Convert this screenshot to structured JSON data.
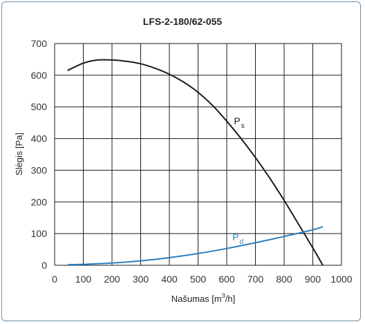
{
  "chart_data": {
    "type": "line",
    "title": "LFS-2-180/62-055",
    "xlabel_main": "Našumas [m",
    "xlabel_sup": "3",
    "xlabel_end": "/h]",
    "ylabel": "Slėgis [Pa]",
    "xlim": [
      0,
      1000
    ],
    "ylim": [
      0,
      700
    ],
    "xticks": [
      0,
      100,
      200,
      300,
      400,
      500,
      600,
      700,
      800,
      900,
      1000
    ],
    "yticks": [
      0,
      100,
      200,
      300,
      400,
      500,
      600,
      700
    ],
    "grid": true,
    "series": [
      {
        "name_main": "P",
        "name_sub": "s",
        "color": "#1a1a1a",
        "x": [
          45,
          100,
          150,
          200,
          250,
          300,
          350,
          400,
          450,
          500,
          550,
          600,
          650,
          700,
          750,
          800,
          850,
          900,
          935
        ],
        "y": [
          615,
          638,
          648,
          648,
          644,
          636,
          622,
          603,
          578,
          546,
          505,
          455,
          400,
          340,
          275,
          205,
          130,
          55,
          0
        ],
        "label_at": [
          625,
          445
        ]
      },
      {
        "name_main": "P",
        "name_sub": "d",
        "color": "#2a7fc0",
        "x": [
          45,
          100,
          200,
          300,
          400,
          500,
          600,
          700,
          800,
          900,
          935
        ],
        "y": [
          2,
          3,
          7,
          14,
          24,
          37,
          53,
          71,
          91,
          112,
          122
        ],
        "label_at": [
          620,
          78
        ]
      }
    ]
  }
}
